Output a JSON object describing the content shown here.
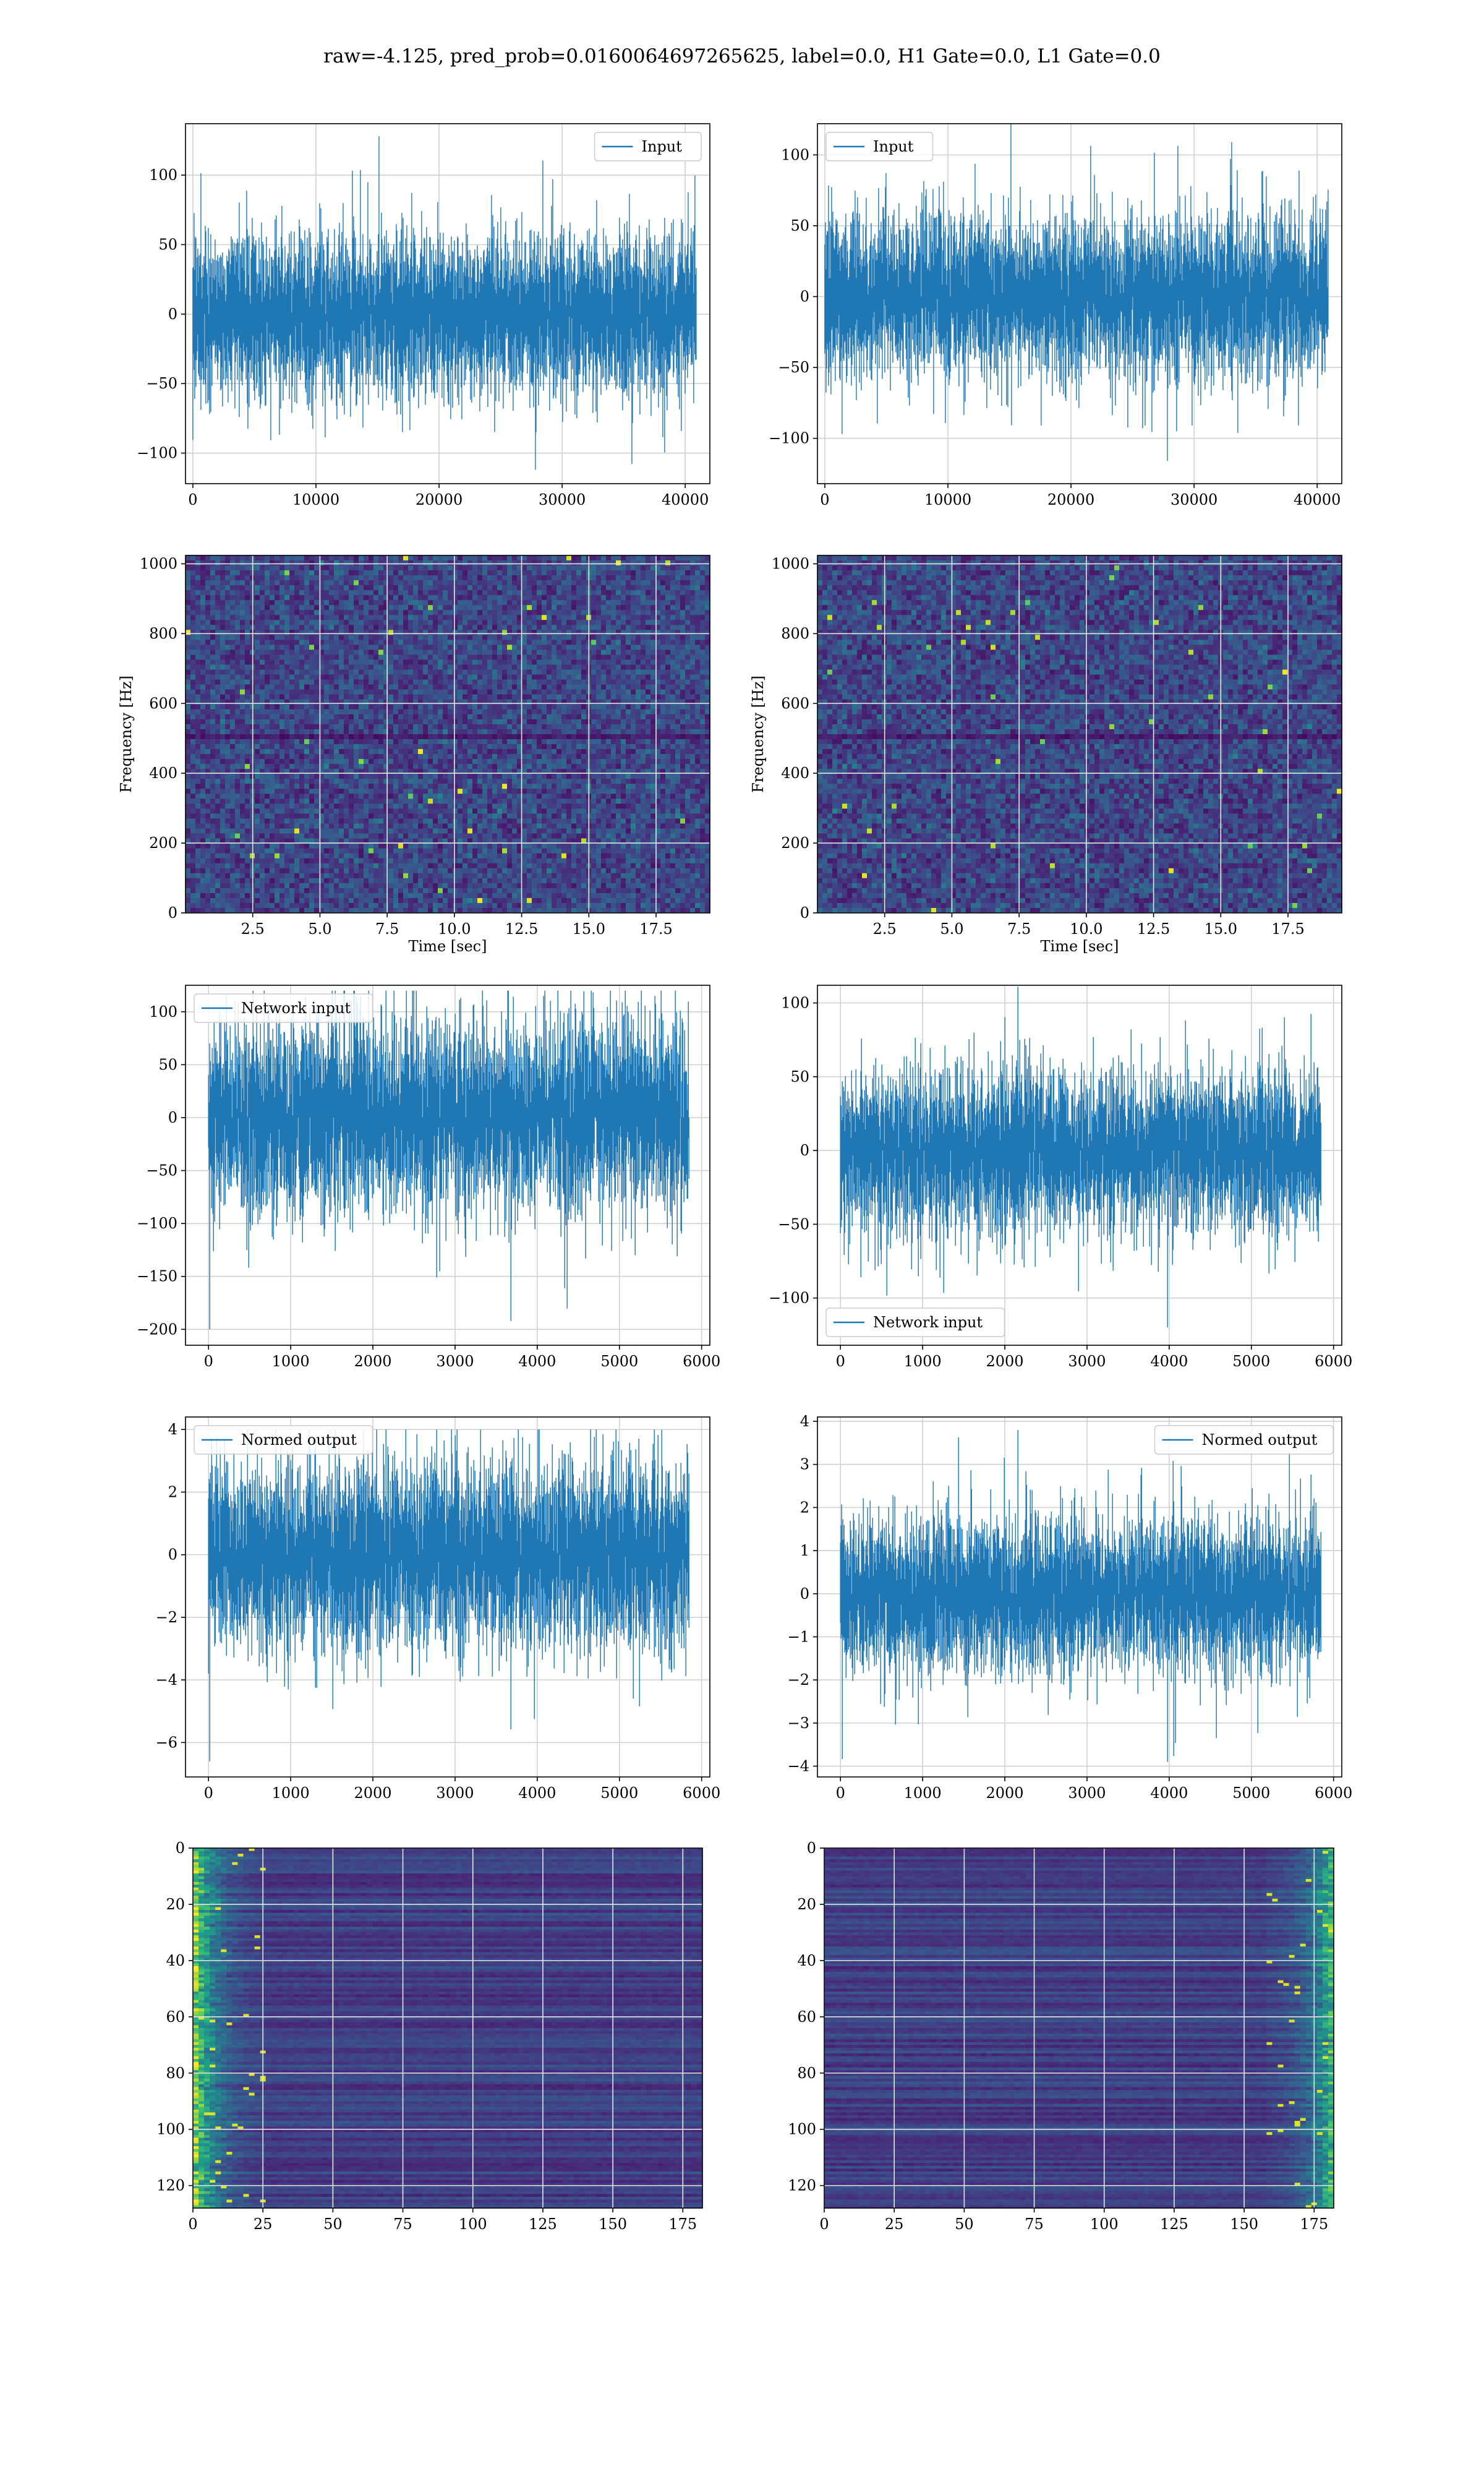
{
  "suptitle": "raw=-4.125, pred_prob=0.0160064697265625, label=0.0, H1 Gate=0.0, L1 Gate=0.0",
  "colors": {
    "line": "#1f77b4",
    "grid": "#d0d0d0",
    "axes_edge": "#000000",
    "viridis": [
      "#440154",
      "#482878",
      "#3e4989",
      "#31688e",
      "#26828e",
      "#1f9e89",
      "#35b779",
      "#6ece58",
      "#b5de2b",
      "#fde725"
    ]
  },
  "chart_data": [
    {
      "id": "h1-input",
      "type": "line",
      "series": [
        {
          "name": "Input",
          "n_points": 40960,
          "amplitude_envelope": [
            -112,
            128
          ]
        }
      ],
      "xlim": [
        -600,
        42000
      ],
      "ylim": [
        -122,
        137
      ],
      "xticks": [
        0,
        10000,
        20000,
        30000,
        40000
      ],
      "yticks": [
        -100,
        -50,
        0,
        50,
        100
      ],
      "legend": "top-right",
      "grid": true
    },
    {
      "id": "l1-input",
      "type": "line",
      "series": [
        {
          "name": "Input",
          "n_points": 40960,
          "amplitude_envelope": [
            -116,
            125
          ]
        }
      ],
      "xlim": [
        -600,
        42000
      ],
      "ylim": [
        -132,
        122
      ],
      "xticks": [
        0,
        10000,
        20000,
        30000,
        40000
      ],
      "yticks": [
        -100,
        -50,
        0,
        50,
        100
      ],
      "legend": "top-left",
      "grid": true
    },
    {
      "id": "h1-spectrogram",
      "type": "heatmap",
      "xlabel": "Time [sec]",
      "ylabel": "Frequency [Hz]",
      "xlim": [
        0,
        19.5
      ],
      "ylim": [
        0,
        1024
      ],
      "xticks": [
        2.5,
        5.0,
        7.5,
        10.0,
        12.5,
        15.0,
        17.5
      ],
      "yticks": [
        0,
        200,
        400,
        600,
        800,
        1000
      ],
      "grid": true
    },
    {
      "id": "l1-spectrogram",
      "type": "heatmap",
      "xlabel": "Time [sec]",
      "ylabel": "Frequency [Hz]",
      "xlim": [
        0,
        19.5
      ],
      "ylim": [
        0,
        1024
      ],
      "xticks": [
        2.5,
        5.0,
        7.5,
        10.0,
        12.5,
        15.0,
        17.5
      ],
      "yticks": [
        0,
        200,
        400,
        600,
        800,
        1000
      ],
      "grid": true
    },
    {
      "id": "h1-network-input",
      "type": "line",
      "series": [
        {
          "name": "Network input",
          "n_points": 5850,
          "amplitude_envelope": [
            -200,
            120
          ]
        }
      ],
      "xlim": [
        -280,
        6100
      ],
      "ylim": [
        -215,
        125
      ],
      "xticks": [
        0,
        1000,
        2000,
        3000,
        4000,
        5000,
        6000
      ],
      "yticks": [
        -200,
        -150,
        -100,
        -50,
        0,
        50,
        100
      ],
      "legend": "top-left",
      "grid": true
    },
    {
      "id": "l1-network-input",
      "type": "line",
      "series": [
        {
          "name": "Network input",
          "n_points": 5850,
          "amplitude_envelope": [
            -120,
            111
          ]
        }
      ],
      "xlim": [
        -280,
        6100
      ],
      "ylim": [
        -132,
        112
      ],
      "xticks": [
        0,
        1000,
        2000,
        3000,
        4000,
        5000,
        6000
      ],
      "yticks": [
        -100,
        -50,
        0,
        50,
        100
      ],
      "legend": "bottom-left",
      "grid": true
    },
    {
      "id": "h1-normed-output",
      "type": "line",
      "series": [
        {
          "name": "Normed output",
          "n_points": 5850,
          "amplitude_envelope": [
            -6.6,
            4.0
          ]
        }
      ],
      "xlim": [
        -280,
        6100
      ],
      "ylim": [
        -7.1,
        4.4
      ],
      "xticks": [
        0,
        1000,
        2000,
        3000,
        4000,
        5000,
        6000
      ],
      "yticks": [
        -6,
        -4,
        -2,
        0,
        2,
        4
      ],
      "legend": "top-left",
      "grid": true
    },
    {
      "id": "l1-normed-output",
      "type": "line",
      "series": [
        {
          "name": "Normed output",
          "n_points": 5850,
          "amplitude_envelope": [
            -3.9,
            3.8
          ]
        }
      ],
      "xlim": [
        -280,
        6100
      ],
      "ylim": [
        -4.25,
        4.1
      ],
      "xticks": [
        0,
        1000,
        2000,
        3000,
        4000,
        5000,
        6000
      ],
      "yticks": [
        -4,
        -3,
        -2,
        -1,
        0,
        1,
        2,
        3,
        4
      ],
      "legend": "top-right",
      "grid": true
    },
    {
      "id": "h1-feature-map",
      "type": "heatmap",
      "rows": 128,
      "cols": 182,
      "xlim": [
        0,
        182
      ],
      "ylim": [
        128,
        0
      ],
      "xticks": [
        0,
        25,
        50,
        75,
        100,
        125,
        150,
        175
      ],
      "yticks": [
        0,
        20,
        40,
        60,
        80,
        100,
        120
      ],
      "bright_region": "left columns 0-25",
      "grid": true
    },
    {
      "id": "l1-feature-map",
      "type": "heatmap",
      "rows": 128,
      "cols": 182,
      "xlim": [
        0,
        182
      ],
      "ylim": [
        128,
        0
      ],
      "xticks": [
        0,
        25,
        50,
        75,
        100,
        125,
        150,
        175
      ],
      "yticks": [
        0,
        20,
        40,
        60,
        80,
        100,
        120
      ],
      "bright_region": "right columns 150-182",
      "grid": true
    }
  ]
}
